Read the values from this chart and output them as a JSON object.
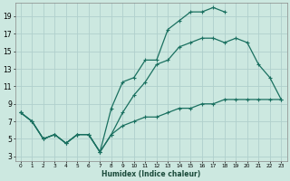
{
  "xlabel": "Humidex (Indice chaleur)",
  "background_color": "#cce8e0",
  "grid_color": "#b0d0cc",
  "line_color": "#1a7060",
  "xlim": [
    -0.5,
    23.5
  ],
  "ylim": [
    2.5,
    20.5
  ],
  "xticks": [
    0,
    1,
    2,
    3,
    4,
    5,
    6,
    7,
    8,
    9,
    10,
    11,
    12,
    13,
    14,
    15,
    16,
    17,
    18,
    19,
    20,
    21,
    22,
    23
  ],
  "yticks": [
    3,
    5,
    7,
    9,
    11,
    13,
    15,
    17,
    19
  ],
  "line1_x": [
    0,
    1,
    2,
    3,
    4,
    5,
    6,
    7,
    8,
    9,
    10,
    11,
    12,
    13,
    14,
    15,
    16,
    17,
    18
  ],
  "line1_y": [
    8,
    7,
    5,
    5.5,
    4.5,
    5.5,
    5.5,
    3.5,
    8.5,
    11.5,
    12,
    14,
    14,
    17.5,
    18.5,
    19.5,
    19.5,
    20,
    19.5
  ],
  "line2_x": [
    0,
    1,
    2,
    3,
    4,
    5,
    6,
    7,
    8,
    9,
    10,
    11,
    12,
    13,
    14,
    15,
    16,
    17,
    18,
    19,
    20,
    21,
    22,
    23
  ],
  "line2_y": [
    8,
    7,
    5,
    5.5,
    4.5,
    5.5,
    5.5,
    3.5,
    5.5,
    8,
    10,
    11.5,
    13.5,
    14,
    15.5,
    16,
    16.5,
    16.5,
    16,
    16.5,
    16,
    13.5,
    12,
    9.5
  ],
  "line3_x": [
    0,
    1,
    2,
    3,
    4,
    5,
    6,
    7,
    8,
    9,
    10,
    11,
    12,
    13,
    14,
    15,
    16,
    17,
    18,
    19,
    20,
    21,
    22,
    23
  ],
  "line3_y": [
    8,
    7,
    5,
    5.5,
    4.5,
    5.5,
    5.5,
    3.5,
    5.5,
    6.5,
    7,
    7.5,
    7.5,
    8,
    8.5,
    8.5,
    9,
    9,
    9.5,
    9.5,
    9.5,
    9.5,
    9.5,
    9.5
  ]
}
